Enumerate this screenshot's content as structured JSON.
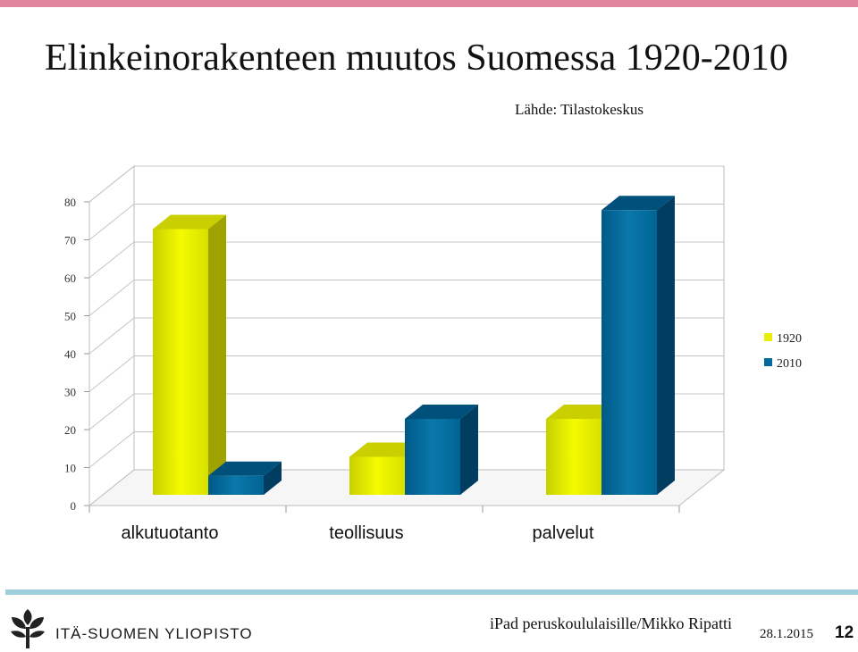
{
  "slide": {
    "title": "Elinkeinorakenteen muutos Suomessa 1920-2010",
    "source": "Lähde: Tilastokeskus",
    "organization": "ITÄ-SUOMEN YLIOPISTO",
    "footer_text": "iPad peruskoululaisille/Mikko Ripatti",
    "date": "28.1.2015",
    "page_number": "12"
  },
  "colors": {
    "top_bar": "#e0839c",
    "bottom_bar": "#9fcfda",
    "series_1920": "#e8ef00",
    "series_2010": "#006a9c"
  },
  "chart_data": {
    "type": "bar",
    "style": "3d-clustered",
    "categories": [
      "alkutuotanto",
      "teollisuus",
      "palvelut"
    ],
    "series": [
      {
        "name": "1920",
        "values": [
          70,
          10,
          20
        ],
        "color": "#e8ef00"
      },
      {
        "name": "2010",
        "values": [
          5,
          20,
          75
        ],
        "color": "#006a9c"
      }
    ],
    "ylim": [
      0,
      80
    ],
    "yticks": [
      "0",
      "10",
      "20",
      "30",
      "40",
      "50",
      "60",
      "70",
      "80"
    ],
    "grid": true,
    "legend": "right"
  }
}
